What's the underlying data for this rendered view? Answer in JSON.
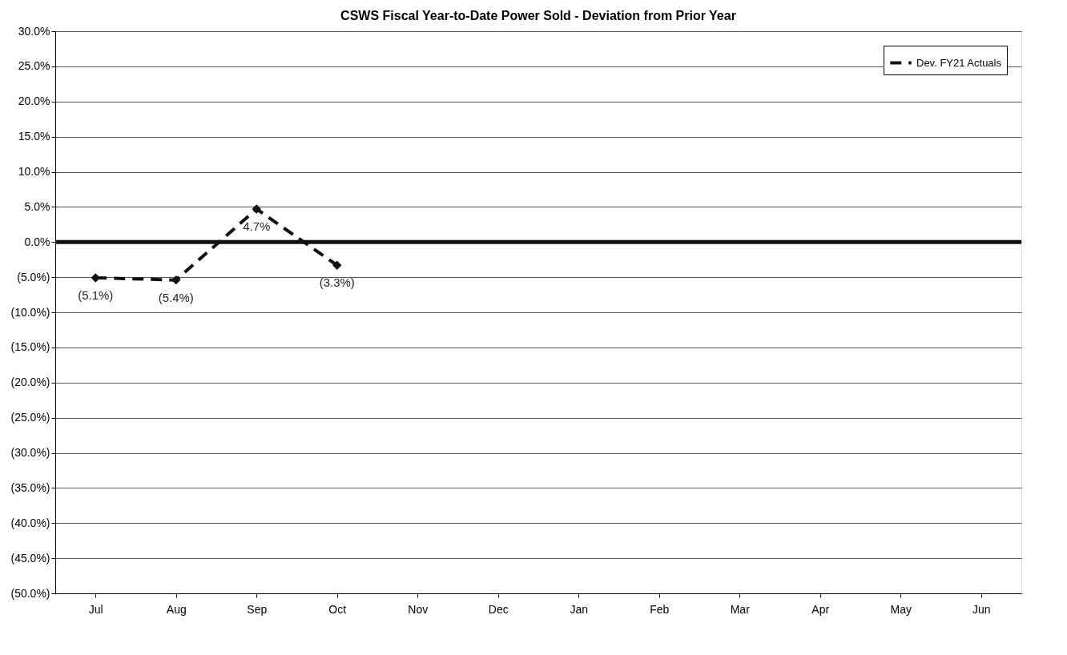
{
  "chart_data": {
    "type": "line",
    "title": "CSWS Fiscal Year-to-Date Power Sold - Deviation from Prior Year",
    "categories": [
      "Jul",
      "Aug",
      "Sep",
      "Oct",
      "Nov",
      "Dec",
      "Jan",
      "Feb",
      "Mar",
      "Apr",
      "May",
      "Jun"
    ],
    "series": [
      {
        "name": "Dev. FY21 Actuals",
        "color": "#111111",
        "values": [
          -5.1,
          -5.4,
          4.7,
          -3.3,
          null,
          null,
          null,
          null,
          null,
          null,
          null,
          null
        ],
        "value_labels": [
          "(5.1%)",
          "(5.4%)",
          "4.7%",
          "(3.3%)",
          null,
          null,
          null,
          null,
          null,
          null,
          null,
          null
        ]
      }
    ],
    "ylim": [
      -50,
      30
    ],
    "yticks": [
      {
        "value": 30,
        "label": "30.0%"
      },
      {
        "value": 25,
        "label": "25.0%"
      },
      {
        "value": 20,
        "label": "20.0%"
      },
      {
        "value": 15,
        "label": "15.0%"
      },
      {
        "value": 10,
        "label": "10.0%"
      },
      {
        "value": 5,
        "label": "5.0%"
      },
      {
        "value": 0,
        "label": "0.0%"
      },
      {
        "value": -5,
        "label": "(5.0%)"
      },
      {
        "value": -10,
        "label": "(10.0%)"
      },
      {
        "value": -15,
        "label": "(15.0%)"
      },
      {
        "value": -20,
        "label": "(20.0%)"
      },
      {
        "value": -25,
        "label": "(25.0%)"
      },
      {
        "value": -30,
        "label": "(30.0%)"
      },
      {
        "value": -35,
        "label": "(35.0%)"
      },
      {
        "value": -40,
        "label": "(40.0%)"
      },
      {
        "value": -45,
        "label": "(45.0%)"
      },
      {
        "value": -50,
        "label": "(50.0%)"
      }
    ],
    "ref_lines": [
      {
        "axis": "y",
        "value": 0,
        "color": "#111111"
      }
    ],
    "grid": "y",
    "legend": "top right",
    "marker": "diamond",
    "line_style": "dashed"
  }
}
